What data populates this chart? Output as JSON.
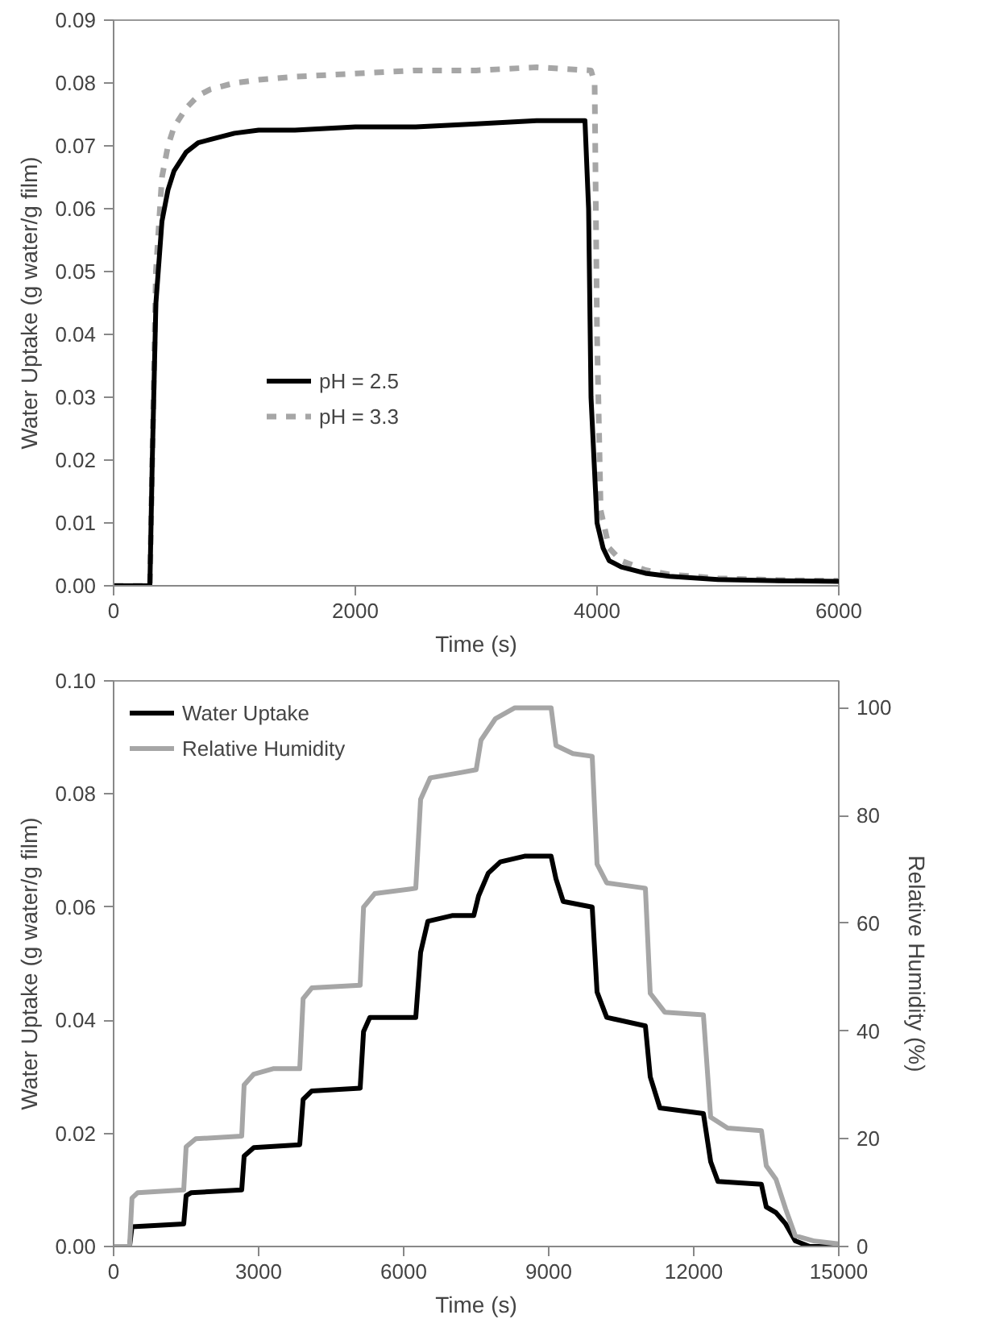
{
  "chart_data": [
    {
      "type": "line",
      "xlabel": "Time (s)",
      "ylabel": "Water Uptake (g water/g film)",
      "xlim": [
        0,
        6000
      ],
      "xticks": [
        0,
        2000,
        4000,
        6000
      ],
      "ylim": [
        0,
        0.09
      ],
      "yticks": [
        {
          "value": 0,
          "label": "0.00"
        },
        {
          "value": 0.01,
          "label": "0.01"
        },
        {
          "value": 0.02,
          "label": "0.02"
        },
        {
          "value": 0.03,
          "label": "0.03"
        },
        {
          "value": 0.04,
          "label": "0.04"
        },
        {
          "value": 0.05,
          "label": "0.05"
        },
        {
          "value": 0.06,
          "label": "0.06"
        },
        {
          "value": 0.07,
          "label": "0.07"
        },
        {
          "value": 0.08,
          "label": "0.08"
        },
        {
          "value": 0.09,
          "label": "0.09"
        }
      ],
      "grid": false,
      "legend": "bottom left",
      "series": [
        {
          "name": "pH = 3.3",
          "color": "#a6a6a6",
          "line_style": "dashed",
          "x": [
            0,
            300,
            320,
            350,
            400,
            450,
            500,
            600,
            700,
            800,
            1000,
            1200,
            1500,
            2000,
            2500,
            3000,
            3500,
            3950,
            3980,
            4000,
            4030,
            4100,
            4200,
            4400,
            4600,
            5000,
            5500,
            6000
          ],
          "values": [
            0,
            0,
            0.02,
            0.05,
            0.065,
            0.07,
            0.073,
            0.076,
            0.078,
            0.079,
            0.08,
            0.0805,
            0.081,
            0.0815,
            0.082,
            0.082,
            0.0825,
            0.082,
            0.08,
            0.04,
            0.012,
            0.006,
            0.004,
            0.0025,
            0.0018,
            0.0012,
            0.0009,
            0.0008
          ]
        },
        {
          "name": "pH = 2.5",
          "color": "#000000",
          "line_style": "solid",
          "x": [
            0,
            300,
            320,
            350,
            400,
            450,
            500,
            600,
            700,
            800,
            1000,
            1200,
            1500,
            2000,
            2500,
            3000,
            3500,
            3900,
            3930,
            3950,
            4000,
            4050,
            4100,
            4200,
            4400,
            4600,
            5000,
            5500,
            6000
          ],
          "values": [
            0,
            0,
            0.02,
            0.045,
            0.058,
            0.063,
            0.066,
            0.069,
            0.0705,
            0.071,
            0.072,
            0.0725,
            0.0725,
            0.073,
            0.073,
            0.0735,
            0.074,
            0.074,
            0.06,
            0.03,
            0.01,
            0.006,
            0.004,
            0.003,
            0.002,
            0.0015,
            0.001,
            0.0008,
            0.0007
          ]
        }
      ]
    },
    {
      "type": "line",
      "xlabel": "Time (s)",
      "ylabel": "Water Uptake (g water/g film)",
      "y2label": "Relative Humidity (%)",
      "xlim": [
        0,
        15000
      ],
      "xticks": [
        0,
        3000,
        6000,
        9000,
        12000,
        15000
      ],
      "ylim": [
        0,
        0.1
      ],
      "yticks": [
        {
          "value": 0,
          "label": "0.00"
        },
        {
          "value": 0.02,
          "label": "0.02"
        },
        {
          "value": 0.04,
          "label": "0.04"
        },
        {
          "value": 0.06,
          "label": "0.06"
        },
        {
          "value": 0.08,
          "label": "0.08"
        },
        {
          "value": 0.1,
          "label": "0.10"
        }
      ],
      "y2lim": [
        0,
        105
      ],
      "y2ticks": [
        0,
        20,
        40,
        60,
        80,
        100
      ],
      "grid": false,
      "legend": "top left",
      "series": [
        {
          "name": "Water Uptake",
          "color": "#000000",
          "axis": "y",
          "x": [
            0,
            330,
            380,
            1450,
            1500,
            1600,
            2650,
            2700,
            2900,
            3850,
            3920,
            4100,
            5100,
            5170,
            5300,
            6250,
            6350,
            6500,
            7000,
            7450,
            7550,
            7750,
            8000,
            8500,
            9050,
            9150,
            9300,
            9900,
            10000,
            10200,
            11000,
            11100,
            11300,
            12200,
            12350,
            12500,
            13400,
            13500,
            13700,
            13900,
            14100,
            14400,
            15000
          ],
          "values": [
            0,
            0,
            0.0035,
            0.004,
            0.009,
            0.0095,
            0.01,
            0.016,
            0.0175,
            0.018,
            0.026,
            0.0275,
            0.028,
            0.038,
            0.0405,
            0.0405,
            0.052,
            0.0575,
            0.0585,
            0.0585,
            0.062,
            0.066,
            0.068,
            0.069,
            0.069,
            0.065,
            0.061,
            0.06,
            0.045,
            0.0405,
            0.039,
            0.03,
            0.0245,
            0.0235,
            0.015,
            0.0115,
            0.011,
            0.007,
            0.006,
            0.004,
            0.001,
            0,
            0
          ]
        },
        {
          "name": "Relative Humidity",
          "color": "#a6a6a6",
          "axis": "y2",
          "x": [
            0,
            330,
            380,
            500,
            1450,
            1500,
            1700,
            2650,
            2700,
            2900,
            3300,
            3850,
            3920,
            4100,
            5100,
            5170,
            5400,
            6250,
            6350,
            6550,
            7200,
            7500,
            7600,
            7900,
            8300,
            9050,
            9150,
            9500,
            9900,
            10000,
            10200,
            11000,
            11100,
            11400,
            12200,
            12350,
            12700,
            13400,
            13500,
            13700,
            13900,
            14100,
            14500,
            15000
          ],
          "values": [
            0,
            0,
            9,
            10,
            10.5,
            18.5,
            20,
            20.5,
            30,
            32,
            33,
            33,
            46,
            48,
            48.5,
            63,
            65.5,
            66.5,
            83,
            87,
            88,
            88.5,
            94,
            98,
            100,
            100,
            93,
            91.5,
            91,
            71,
            67.5,
            66.5,
            47,
            43.5,
            43,
            24,
            22,
            21.5,
            15,
            12.5,
            7,
            2,
            1,
            0.5
          ]
        }
      ]
    }
  ]
}
